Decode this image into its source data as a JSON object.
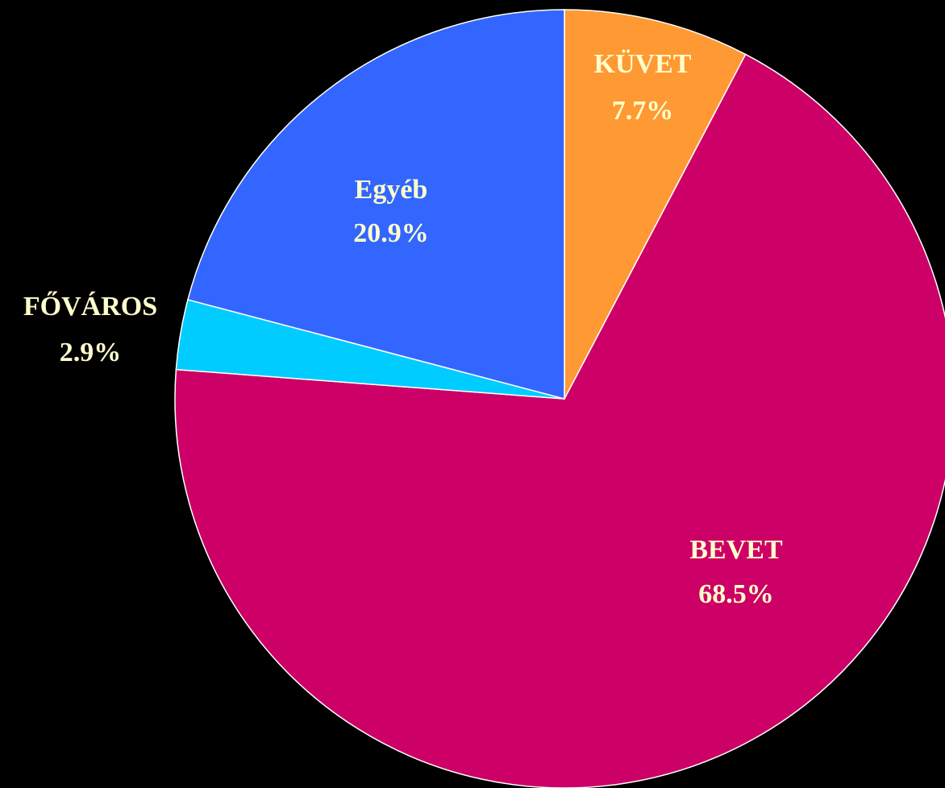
{
  "chart_data": {
    "type": "pie",
    "categories": [
      "KÜVET",
      "BEVET",
      "FŐVÁROS",
      "Egyéb"
    ],
    "values": [
      7.7,
      68.5,
      2.9,
      20.9
    ],
    "value_labels": [
      "7.7%",
      "68.5%",
      "2.9%",
      "20.9%"
    ],
    "colors": [
      "#ff9933",
      "#cc0066",
      "#00ccff",
      "#3366ff"
    ]
  }
}
